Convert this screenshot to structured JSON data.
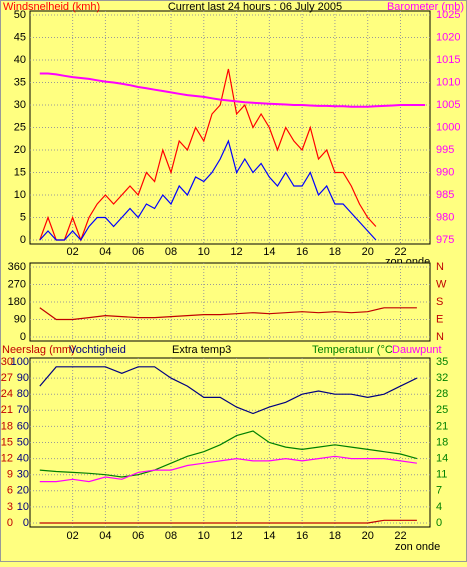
{
  "chart_data": [
    {
      "type": "line",
      "title": "Current last 24 hours : 06 July 2005",
      "ylabel": "Windsnelheid (kmh)",
      "y2label": "Barometer (mb)",
      "x": [
        0,
        0.5,
        1,
        1.5,
        2,
        2.5,
        3,
        3.5,
        4,
        4.5,
        5,
        5.5,
        6,
        6.5,
        7,
        7.5,
        8,
        8.5,
        9,
        9.5,
        10,
        10.5,
        11,
        11.5,
        12,
        12.5,
        13,
        13.5,
        14,
        14.5,
        15,
        15.5,
        16,
        16.5,
        17,
        17.5,
        18,
        18.5,
        19,
        19.5,
        20,
        20.5,
        21,
        21.5,
        22,
        22.5,
        23,
        23.5
      ],
      "series": [
        {
          "color": "#ff0000",
          "values": [
            0,
            5,
            0,
            0,
            5,
            0,
            5,
            8,
            10,
            8,
            10,
            12,
            10,
            15,
            13,
            20,
            15,
            22,
            20,
            25,
            22,
            28,
            30,
            38,
            28,
            30,
            25,
            28,
            25,
            20,
            25,
            22,
            20,
            25,
            18,
            20,
            15,
            15,
            12,
            8,
            5,
            3,
            null,
            null,
            null,
            null,
            null,
            null
          ]
        },
        {
          "color": "#0000ff",
          "values": [
            0,
            2,
            0,
            0,
            2,
            0,
            3,
            5,
            5,
            3,
            5,
            7,
            5,
            8,
            7,
            10,
            8,
            12,
            10,
            14,
            13,
            15,
            18,
            22,
            15,
            18,
            15,
            17,
            14,
            12,
            15,
            12,
            12,
            15,
            10,
            12,
            8,
            8,
            6,
            4,
            2,
            0,
            null,
            null,
            null,
            null,
            null,
            null
          ]
        },
        {
          "color": "#ff00ff",
          "axis": "y2",
          "values": [
            1012,
            1012,
            1011.8,
            1011.5,
            1011.2,
            1011,
            1010.8,
            1010.5,
            1010.2,
            1010,
            1009.7,
            1009.4,
            1009,
            1008.7,
            1008.4,
            1008.1,
            1007.8,
            1007.5,
            1007.2,
            1007,
            1006.8,
            1006.5,
            1006.2,
            1006,
            1005.8,
            1005.6,
            1005.5,
            1005.4,
            1005.3,
            1005.2,
            1005.1,
            1005,
            1005,
            1004.9,
            1004.8,
            1004.8,
            1004.7,
            1004.7,
            1004.6,
            1004.6,
            1004.6,
            1004.7,
            1004.8,
            1004.9,
            1005,
            1005,
            1005,
            1005
          ]
        }
      ],
      "xlim": [
        -0.6,
        23.8
      ],
      "xticks": [
        {
          "value": 2,
          "label": "02"
        },
        {
          "value": 4,
          "label": "04"
        },
        {
          "value": 6,
          "label": "06"
        },
        {
          "value": 8,
          "label": "08"
        },
        {
          "value": 10,
          "label": "10"
        },
        {
          "value": 12,
          "label": "12"
        },
        {
          "value": 14,
          "label": "14"
        },
        {
          "value": 16,
          "label": "16"
        },
        {
          "value": 18,
          "label": "18"
        },
        {
          "value": 20,
          "label": "20"
        },
        {
          "value": 22,
          "label": "22"
        }
      ],
      "ylim": [
        0,
        50
      ],
      "yticks": [
        0,
        5,
        10,
        15,
        20,
        25,
        30,
        35,
        40,
        45,
        50
      ],
      "y2lim": [
        975,
        1025
      ],
      "y2ticks": [
        975,
        980,
        985,
        990,
        995,
        1000,
        1005,
        1010,
        1015,
        1020,
        1025
      ],
      "grid": true,
      "annotations": [
        "zon onde"
      ]
    },
    {
      "type": "line",
      "x": [
        0,
        1,
        2,
        3,
        4,
        5,
        6,
        7,
        8,
        9,
        10,
        11,
        12,
        13,
        14,
        15,
        16,
        17,
        18,
        19,
        20,
        21,
        22,
        23
      ],
      "series": [
        {
          "color": "#c00000",
          "values": [
            150,
            90,
            90,
            100,
            110,
            105,
            100,
            100,
            105,
            110,
            115,
            115,
            120,
            125,
            120,
            125,
            130,
            125,
            130,
            125,
            130,
            150,
            150,
            150
          ]
        }
      ],
      "xlim": [
        -0.6,
        23.8
      ],
      "xticks": [
        2,
        4,
        6,
        8,
        10,
        12,
        14,
        16,
        18,
        20,
        22
      ],
      "ylim": [
        0,
        360
      ],
      "yticks": [
        0,
        90,
        180,
        270,
        360
      ],
      "y2lim": [
        0,
        360
      ],
      "y2ticks": [
        {
          "value": 0,
          "label": "N"
        },
        {
          "value": 90,
          "label": "E"
        },
        {
          "value": 180,
          "label": "S"
        },
        {
          "value": 270,
          "label": "W"
        },
        {
          "value": 360,
          "label": "N"
        }
      ],
      "grid": true
    },
    {
      "type": "line",
      "x": [
        0,
        1,
        2,
        3,
        4,
        5,
        6,
        7,
        8,
        9,
        10,
        11,
        12,
        13,
        14,
        15,
        16,
        17,
        18,
        19,
        20,
        21,
        22,
        23
      ],
      "series": [
        {
          "name": "Neerslag (mm)",
          "color": "#c00000",
          "axis": "y3",
          "values": [
            0,
            0,
            0,
            0,
            0,
            0,
            0,
            0,
            0,
            0,
            0,
            0,
            0,
            0,
            0,
            0,
            0,
            0,
            0,
            0,
            0,
            0.5,
            0.5,
            0.5
          ]
        },
        {
          "name": "Vochtigheid",
          "color": "#000080",
          "values": [
            85,
            97,
            97,
            97,
            97,
            93,
            97,
            97,
            90,
            85,
            78,
            78,
            72,
            68,
            72,
            75,
            80,
            82,
            80,
            80,
            78,
            80,
            85,
            90
          ]
        },
        {
          "name": "Temperatuur (°C",
          "color": "#008000",
          "axis": "y2",
          "values": [
            11.5,
            11.2,
            11,
            10.8,
            10.5,
            10,
            10.5,
            11.5,
            13,
            14.5,
            15.5,
            17,
            19,
            20,
            17.5,
            16.5,
            16,
            16.5,
            17,
            16.5,
            16,
            15.5,
            15,
            14
          ]
        },
        {
          "name": "Dauwpunt",
          "color": "#ff00ff",
          "axis": "y2",
          "values": [
            9,
            9,
            9.5,
            9,
            10,
            9.5,
            11,
            11.5,
            11.5,
            12.5,
            13,
            13.5,
            14,
            13.5,
            13.5,
            14,
            13.5,
            14,
            14.5,
            14,
            14,
            14,
            13.5,
            13
          ]
        }
      ],
      "xlim": [
        -0.6,
        23.8
      ],
      "xticks": [
        {
          "value": 2,
          "label": "02"
        },
        {
          "value": 4,
          "label": "04"
        },
        {
          "value": 6,
          "label": "06"
        },
        {
          "value": 8,
          "label": "08"
        },
        {
          "value": 10,
          "label": "10"
        },
        {
          "value": 12,
          "label": "12"
        },
        {
          "value": 14,
          "label": "14"
        },
        {
          "value": 16,
          "label": "16"
        },
        {
          "value": 18,
          "label": "18"
        },
        {
          "value": 20,
          "label": "20"
        },
        {
          "value": 22,
          "label": "22"
        }
      ],
      "ylim": [
        0,
        100
      ],
      "yticks": [
        0,
        10,
        20,
        30,
        40,
        50,
        60,
        70,
        80,
        90,
        100
      ],
      "y3lim": [
        0,
        30
      ],
      "y3ticks": [
        0,
        3,
        6,
        9,
        12,
        15,
        18,
        21,
        24,
        27,
        30
      ],
      "y2lim": [
        0,
        35
      ],
      "y2ticks": [
        0,
        {
          "value": 3.5,
          "label": "4"
        },
        7,
        {
          "value": 10.5,
          "label": "11"
        },
        14,
        {
          "value": 17.5,
          "label": "18"
        },
        21,
        {
          "value": 24.5,
          "label": "25"
        },
        28,
        {
          "value": 31.5,
          "label": "32"
        },
        35
      ],
      "grid": true,
      "annotations": [
        "Extra temp3",
        "zon onde"
      ]
    }
  ]
}
